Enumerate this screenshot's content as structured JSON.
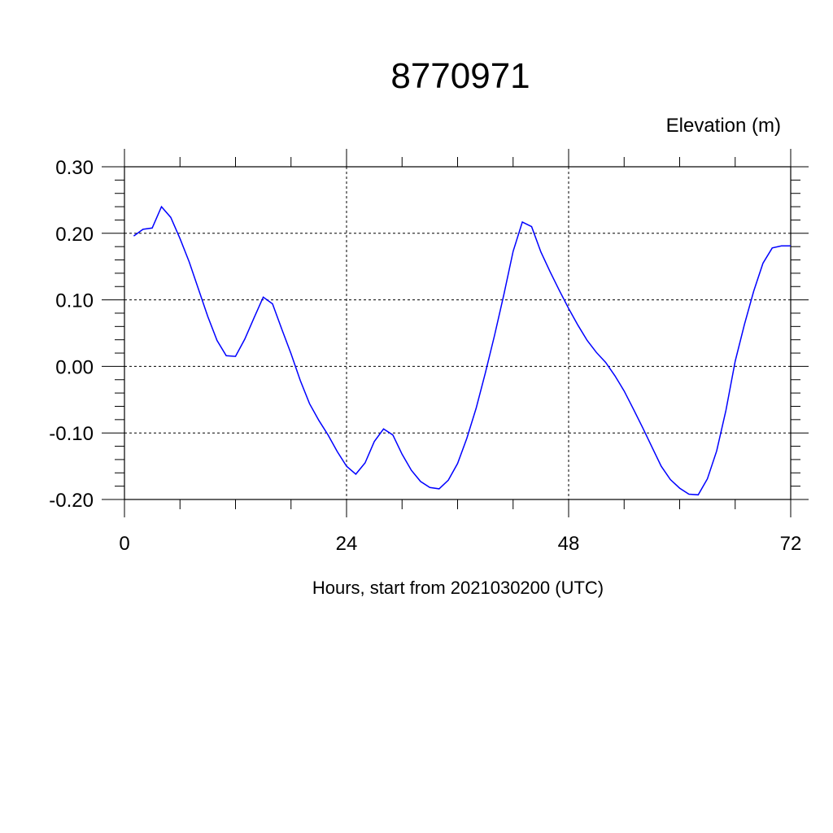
{
  "chart_data": {
    "type": "line",
    "title": "8770971",
    "ylabel": "Elevation (m)",
    "xlabel": "Hours, start from 2021030200 (UTC)",
    "xlim": [
      0,
      72
    ],
    "ylim": [
      -0.2,
      0.3
    ],
    "xticks": [
      0,
      24,
      48,
      72
    ],
    "xtick_labels": [
      "0",
      "24",
      "48",
      "72"
    ],
    "yticks": [
      0.3,
      0.2,
      0.1,
      0.0,
      -0.1,
      -0.2
    ],
    "ytick_labels": [
      "0.30",
      "0.20",
      "0.10",
      "0.00",
      "-0.10",
      "-0.20"
    ],
    "grid": true,
    "line_color": "#0000ff",
    "series": [
      {
        "x": [
          1,
          2,
          3,
          4,
          5,
          6,
          7,
          8,
          9,
          10,
          11,
          12,
          13,
          14,
          15,
          16,
          17,
          18,
          19,
          20,
          21,
          22,
          23,
          24,
          25,
          26,
          27,
          28,
          29,
          30,
          31,
          32,
          33,
          34,
          35,
          36,
          37,
          38,
          39,
          40,
          41,
          42,
          43,
          44,
          45,
          46,
          47,
          48,
          49,
          50,
          51,
          52,
          53,
          54,
          55,
          56,
          57,
          58,
          59,
          60,
          61,
          62,
          63,
          64,
          65,
          66,
          67,
          68,
          69,
          70,
          71,
          72
        ],
        "values": [
          0.196,
          0.206,
          0.208,
          0.24,
          0.224,
          0.192,
          0.157,
          0.116,
          0.075,
          0.039,
          0.016,
          0.015,
          0.041,
          0.073,
          0.104,
          0.094,
          0.056,
          0.019,
          -0.021,
          -0.056,
          -0.081,
          -0.103,
          -0.128,
          -0.15,
          -0.162,
          -0.145,
          -0.113,
          -0.094,
          -0.103,
          -0.132,
          -0.156,
          -0.173,
          -0.182,
          -0.184,
          -0.171,
          -0.146,
          -0.108,
          -0.063,
          -0.01,
          0.047,
          0.108,
          0.173,
          0.217,
          0.21,
          0.172,
          0.142,
          0.114,
          0.087,
          0.062,
          0.039,
          0.021,
          0.006,
          -0.014,
          -0.037,
          -0.064,
          -0.092,
          -0.121,
          -0.15,
          -0.17,
          -0.183,
          -0.192,
          -0.193,
          -0.169,
          -0.127,
          -0.066,
          0.008,
          0.063,
          0.113,
          0.155,
          0.178,
          0.181,
          0.181
        ]
      }
    ]
  }
}
